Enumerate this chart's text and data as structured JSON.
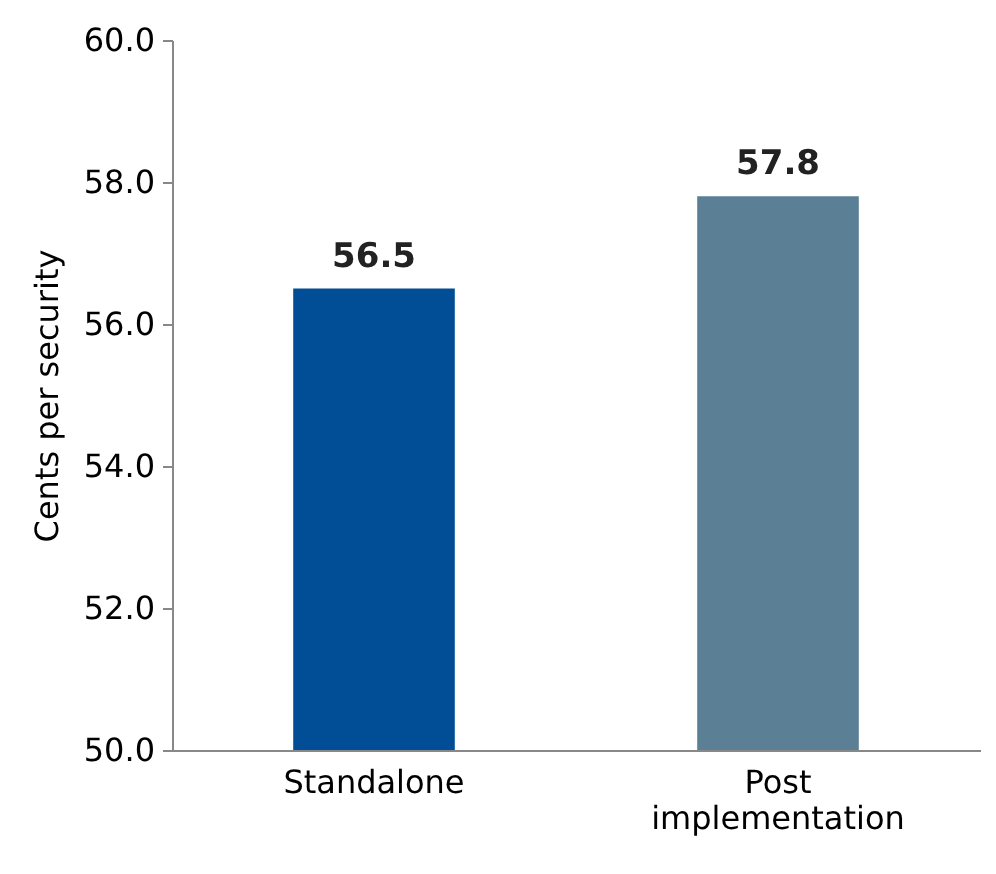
{
  "chart_data": {
    "type": "bar",
    "ylabel": "Cents per security",
    "categories": [
      "Standalone",
      "Post implementation"
    ],
    "values": [
      56.5,
      57.8
    ],
    "colors": [
      "#024e96",
      "#5b7f95"
    ],
    "ylim": [
      50,
      60
    ],
    "yticks": [
      {
        "value": 50,
        "label": "50.0"
      },
      {
        "value": 52,
        "label": "52.0"
      },
      {
        "value": 54,
        "label": "54.0"
      },
      {
        "value": 56,
        "label": "56.0"
      },
      {
        "value": 58,
        "label": "58.0"
      },
      {
        "value": 60,
        "label": "60.0"
      }
    ],
    "data_labels": true
  }
}
